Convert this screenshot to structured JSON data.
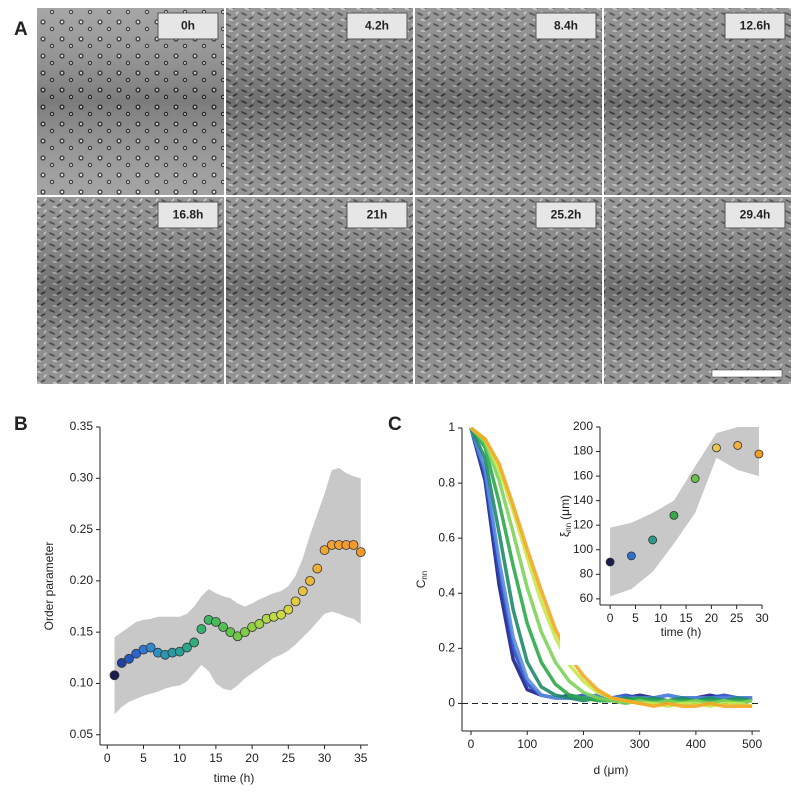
{
  "panel_labels": [
    "A",
    "B",
    "C"
  ],
  "panel_a": {
    "tiles": [
      {
        "label": "0h",
        "color": "#1b1b4d"
      },
      {
        "label": "4.2h",
        "color": "#2a3f8a"
      },
      {
        "label": "8.4h",
        "color": "#2a5a6a"
      },
      {
        "label": "12.6h",
        "color": "#1f6a4a"
      },
      {
        "label": "16.8h",
        "color": "#2a7a2a"
      },
      {
        "label": "21h",
        "color": "#6a6a20"
      },
      {
        "label": "25.2h",
        "color": "#7a5a20"
      },
      {
        "label": "29.4h",
        "color": "#8a5a1a"
      }
    ]
  },
  "chart_data": [
    {
      "type": "scatter",
      "xlabel": "time (h)",
      "ylabel": "Order parameter",
      "x": [
        1,
        2,
        3,
        4,
        5,
        6,
        7,
        8,
        9,
        10,
        11,
        12,
        13,
        14,
        15,
        16,
        17,
        18,
        19,
        20,
        21,
        22,
        23,
        24,
        25,
        26,
        27,
        28,
        29,
        30,
        31,
        32,
        33,
        34,
        35
      ],
      "values": [
        0.108,
        0.12,
        0.124,
        0.129,
        0.133,
        0.135,
        0.13,
        0.128,
        0.13,
        0.131,
        0.135,
        0.14,
        0.153,
        0.162,
        0.16,
        0.155,
        0.15,
        0.146,
        0.15,
        0.155,
        0.158,
        0.163,
        0.165,
        0.167,
        0.172,
        0.18,
        0.19,
        0.2,
        0.212,
        0.23,
        0.235,
        0.235,
        0.235,
        0.235,
        0.228
      ],
      "colors": [
        "#1b1b4d",
        "#2140a0",
        "#2456c0",
        "#2a66d0",
        "#2e78d4",
        "#3088d0",
        "#2e90c0",
        "#2c96b0",
        "#2a9aa4",
        "#2aa098",
        "#2ca68a",
        "#30ac7c",
        "#36b270",
        "#3eb864",
        "#48bc5a",
        "#54c052",
        "#62c44c",
        "#70c848",
        "#80cc46",
        "#90d044",
        "#a0d444",
        "#b0d844",
        "#c0da44",
        "#ccd844",
        "#d8d442",
        "#e2cc40",
        "#e8c23e",
        "#ecb83c",
        "#eeae38",
        "#f0a634",
        "#f2a232",
        "#f29e30",
        "#f29c2e",
        "#f49a2c",
        "#f4982a"
      ],
      "band_upper": [
        0.145,
        0.15,
        0.155,
        0.16,
        0.162,
        0.163,
        0.165,
        0.165,
        0.165,
        0.165,
        0.168,
        0.175,
        0.185,
        0.192,
        0.188,
        0.185,
        0.183,
        0.178,
        0.175,
        0.178,
        0.182,
        0.185,
        0.188,
        0.19,
        0.195,
        0.205,
        0.222,
        0.245,
        0.265,
        0.285,
        0.308,
        0.31,
        0.305,
        0.302,
        0.3
      ],
      "band_lower": [
        0.07,
        0.077,
        0.082,
        0.085,
        0.088,
        0.09,
        0.092,
        0.095,
        0.097,
        0.098,
        0.102,
        0.11,
        0.118,
        0.112,
        0.1,
        0.095,
        0.093,
        0.098,
        0.105,
        0.11,
        0.115,
        0.12,
        0.125,
        0.128,
        0.132,
        0.138,
        0.145,
        0.152,
        0.16,
        0.168,
        0.17,
        0.168,
        0.165,
        0.163,
        0.158
      ],
      "band_color": "#c8c8c8",
      "xlim": [
        -1,
        36
      ],
      "xticks": [
        0,
        5,
        10,
        15,
        20,
        25,
        30,
        35
      ],
      "ylim": [
        0.04,
        0.35
      ],
      "yticks": [
        0.05,
        {
          "value": 0.1,
          "label": "0.10"
        },
        0.15,
        {
          "value": 0.2,
          "label": "0.20"
        },
        0.25,
        {
          "value": 0.3,
          "label": "0.30"
        },
        0.35
      ]
    },
    {
      "type": "line",
      "xlabel": "d (μm)",
      "ylabel": {
        "symbol": "C",
        "sub": "nn"
      },
      "x": [
        0,
        25,
        50,
        75,
        100,
        125,
        150,
        175,
        200,
        225,
        250,
        275,
        300,
        325,
        350,
        375,
        400,
        425,
        450,
        475,
        500
      ],
      "series": [
        {
          "color": "#1c1f8a",
          "values": [
            1,
            0.81,
            0.43,
            0.16,
            0.05,
            0.03,
            0.02,
            0.03,
            0.02,
            0.03,
            0.02,
            0.02,
            0.03,
            0.02,
            0.03,
            0.02,
            0.02,
            0.03,
            0.02,
            0.02,
            0.02
          ]
        },
        {
          "color": "#2b4fc4",
          "values": [
            1,
            0.83,
            0.48,
            0.2,
            0.07,
            0.03,
            0.02,
            0.02,
            0.03,
            0.02,
            0.02,
            0.03,
            0.02,
            0.02,
            0.03,
            0.02,
            0.02,
            0.02,
            0.03,
            0.02,
            0.02
          ]
        },
        {
          "color": "#5b8de0",
          "values": [
            1,
            0.85,
            0.52,
            0.24,
            0.09,
            0.03,
            0.02,
            0.02,
            0.02,
            0.03,
            0.02,
            0.02,
            0.02,
            0.02,
            0.03,
            0.02,
            0.02,
            0.02,
            0.02,
            0.02,
            0.02
          ]
        },
        {
          "color": "#1f8a6a",
          "values": [
            1,
            0.89,
            0.62,
            0.34,
            0.15,
            0.06,
            0.03,
            0.02,
            0.01,
            0.02,
            0.01,
            0.02,
            0.01,
            0.02,
            0.01,
            0.02,
            0.01,
            0.02,
            0.01,
            0.02,
            0.01
          ]
        },
        {
          "color": "#2ca84a",
          "values": [
            1,
            0.93,
            0.73,
            0.5,
            0.29,
            0.15,
            0.07,
            0.03,
            0.02,
            0.01,
            0.01,
            0.01,
            0.02,
            0.01,
            0.01,
            0.01,
            0.01,
            0.01,
            0.01,
            0.01,
            0.01
          ]
        },
        {
          "color": "#7fd35a",
          "values": [
            1,
            0.95,
            0.81,
            0.62,
            0.42,
            0.26,
            0.15,
            0.08,
            0.04,
            0.02,
            0.01,
            0,
            0.01,
            0,
            0.01,
            0,
            0.01,
            0,
            0.01,
            0,
            0.01
          ]
        },
        {
          "color": "#c8e84a",
          "values": [
            1,
            0.96,
            0.85,
            0.7,
            0.53,
            0.37,
            0.24,
            0.14,
            0.08,
            0.04,
            0.02,
            0.01,
            0,
            0,
            -0.01,
            0,
            0,
            -0.01,
            0,
            0,
            -0.01
          ]
        },
        {
          "color": "#f5a623",
          "values": [
            1,
            0.96,
            0.87,
            0.72,
            0.56,
            0.41,
            0.27,
            0.17,
            0.1,
            0.05,
            0.02,
            0.01,
            0,
            -0.01,
            0,
            -0.01,
            -0.01,
            0,
            -0.01,
            -0.01,
            -0.01
          ]
        }
      ],
      "hline": 0,
      "xlim": [
        -16,
        514
      ],
      "xticks": [
        0,
        100,
        200,
        300,
        400,
        500
      ],
      "ylim": [
        -0.1,
        1
      ],
      "yticks": [
        0,
        0.2,
        0.4,
        0.6,
        0.8,
        1
      ],
      "inset": {
        "type": "scatter",
        "xlabel": "time (h)",
        "ylabel": {
          "symbol": "ξ",
          "sub": "nn",
          "unit": "(μm)"
        },
        "x": [
          0,
          4.2,
          8.4,
          12.6,
          16.8,
          21,
          25.2,
          29.4
        ],
        "values": [
          90,
          95,
          108,
          128,
          158,
          183,
          185,
          178
        ],
        "colors": [
          "#1b1b4d",
          "#2f6fd0",
          "#2a9a8a",
          "#3aa84a",
          "#6cc04a",
          "#e8c84a",
          "#f0b040",
          "#f0a020"
        ],
        "band_upper": [
          118,
          122,
          130,
          140,
          168,
          195,
          200,
          200
        ],
        "band_lower": [
          62,
          68,
          82,
          105,
          130,
          175,
          165,
          160
        ],
        "band_color": "#c8c8c8",
        "xlim": [
          -2,
          30
        ],
        "xticks": [
          0,
          5,
          10,
          15,
          20,
          25,
          30
        ],
        "ylim": [
          55,
          200
        ],
        "yticks": [
          60,
          80,
          100,
          120,
          140,
          160,
          180,
          200
        ]
      }
    }
  ]
}
